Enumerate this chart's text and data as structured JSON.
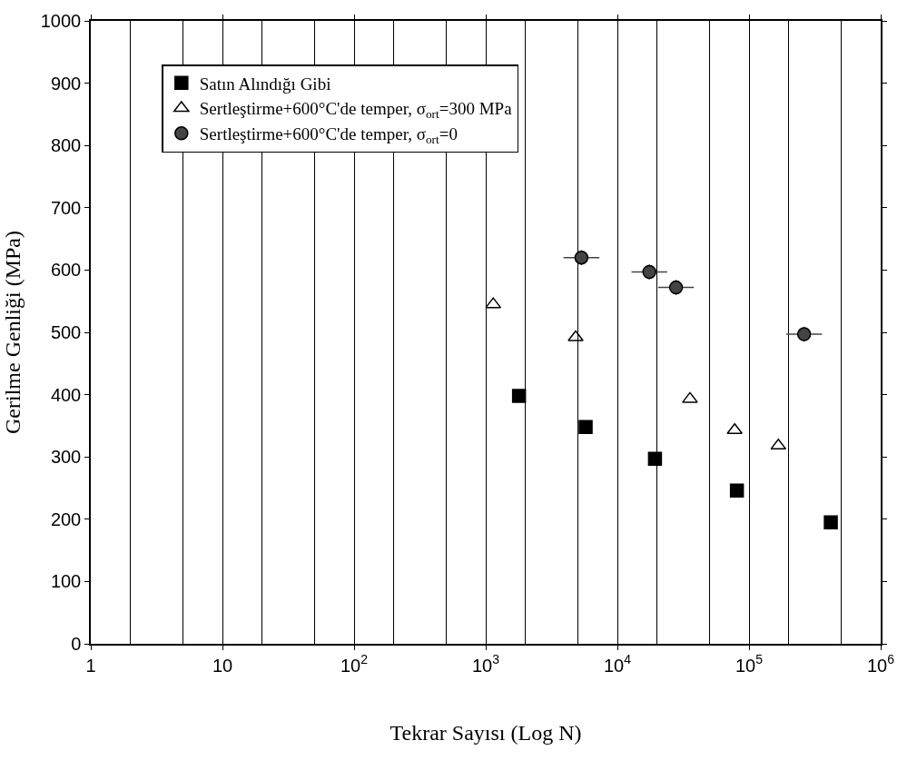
{
  "chart_data": {
    "type": "scatter",
    "xlabel": "Tekrar Sayısı (Log N)",
    "ylabel": "Gerilme Genliği (MPa)",
    "log": "x",
    "xlim": [
      1,
      1000000
    ],
    "xticks": [
      1,
      10,
      {
        "value": 100,
        "label": "10$^{2}$"
      },
      {
        "value": 1000,
        "label": "10$^{3}$"
      },
      {
        "value": 10000,
        "label": "10$^{4}$"
      },
      {
        "value": 100000,
        "label": "10$^{5}$"
      },
      {
        "value": 1000000,
        "label": "10$^{6}$"
      }
    ],
    "ylim": [
      0,
      1000
    ],
    "yticks": [
      0,
      100,
      200,
      300,
      400,
      500,
      600,
      700,
      800,
      900,
      1000
    ],
    "grid": "x",
    "legend": "top left",
    "series": [
      {
        "name": "Satın Alındığı Gibi",
        "color": "#000000",
        "marker": "square",
        "x": [
          1790,
          5740,
          19300,
          80900,
          418000
        ],
        "values": [
          398,
          348,
          297,
          246,
          195
        ]
      },
      {
        "name": "Sertleştirme+600°C'de temper, σ$_{ort}$=300 MPa",
        "color": "#000000",
        "marker": "triangle",
        "x": [
          1140,
          4820,
          35600,
          77800,
          167000
        ],
        "values": [
          545,
          492,
          393,
          343,
          318
        ]
      },
      {
        "name": "Sertleştirme+600°C'de temper, σ$_{ort}$=0",
        "color": "#444444",
        "marker": "circle",
        "x": [
          5330,
          17500,
          27900,
          262000
        ],
        "values": [
          620,
          597,
          572,
          497
        ],
        "errors": [
          12,
          12,
          12,
          12
        ],
        "xerrors": [
          [
            3900,
            7300
          ],
          [
            12800,
            23900
          ],
          [
            20400,
            38100
          ],
          [
            192000,
            358000
          ]
        ]
      }
    ]
  }
}
